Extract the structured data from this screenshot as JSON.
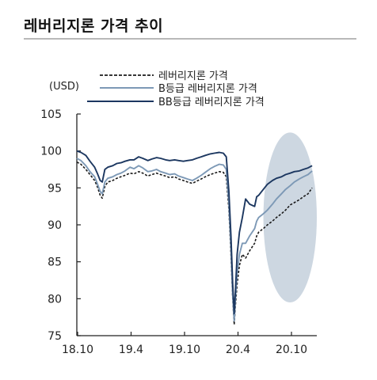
{
  "page": {
    "title": "레버리지론 가격 추이"
  },
  "chart_data": {
    "type": "line",
    "ylabel": "(USD)",
    "ylim": [
      75,
      105
    ],
    "yticks": [
      75,
      80,
      85,
      90,
      95,
      100,
      105
    ],
    "xlim": [
      "2018-10-01",
      "2020-12-31"
    ],
    "xtick_labels": [
      "18.10",
      "19.4",
      "19.10",
      "20.4",
      "20.10"
    ],
    "legend_position": "top",
    "highlight": {
      "shape": "ellipse",
      "x": [
        "2020-07-01",
        "2020-12-31"
      ],
      "y": [
        79.5,
        102.5
      ],
      "color": "#cdd7e1"
    },
    "series": [
      {
        "name": "레버리지론 가격",
        "style": "dashed",
        "color": "#1a1a1a",
        "x": [
          "2018-10-01",
          "2018-10-15",
          "2018-11-01",
          "2018-11-15",
          "2018-12-01",
          "2018-12-10",
          "2018-12-20",
          "2018-12-27",
          "2019-01-05",
          "2019-01-15",
          "2019-02-01",
          "2019-02-15",
          "2019-03-01",
          "2019-03-15",
          "2019-04-01",
          "2019-04-15",
          "2019-05-01",
          "2019-05-15",
          "2019-06-01",
          "2019-06-15",
          "2019-07-01",
          "2019-07-15",
          "2019-08-01",
          "2019-08-15",
          "2019-09-01",
          "2019-09-15",
          "2019-10-01",
          "2019-10-15",
          "2019-11-01",
          "2019-11-15",
          "2019-12-01",
          "2019-12-15",
          "2020-01-01",
          "2020-01-15",
          "2020-02-01",
          "2020-02-15",
          "2020-02-25",
          "2020-03-05",
          "2020-03-12",
          "2020-03-18",
          "2020-03-23",
          "2020-03-27",
          "2020-04-02",
          "2020-04-10",
          "2020-04-20",
          "2020-05-01",
          "2020-05-15",
          "2020-06-01",
          "2020-06-08",
          "2020-06-15",
          "2020-07-01",
          "2020-07-15",
          "2020-08-01",
          "2020-08-15",
          "2020-09-01",
          "2020-09-15",
          "2020-10-01",
          "2020-10-15",
          "2020-11-01",
          "2020-11-15",
          "2020-12-01",
          "2020-12-15"
        ],
        "y": [
          98.5,
          98.2,
          97.5,
          96.8,
          96.0,
          95.2,
          94.0,
          93.6,
          95.2,
          95.8,
          96.0,
          96.3,
          96.5,
          96.7,
          97.0,
          96.9,
          97.2,
          97.0,
          96.6,
          96.8,
          97.0,
          96.8,
          96.6,
          96.4,
          96.5,
          96.2,
          96.0,
          95.8,
          95.6,
          95.9,
          96.2,
          96.5,
          96.8,
          97.0,
          97.2,
          97.1,
          96.5,
          92.0,
          86.0,
          80.0,
          76.5,
          79.0,
          82.0,
          84.5,
          86.0,
          85.5,
          86.5,
          87.5,
          88.5,
          89.0,
          89.5,
          90.0,
          90.5,
          91.0,
          91.5,
          92.0,
          92.7,
          93.0,
          93.4,
          93.8,
          94.2,
          95.0
        ]
      },
      {
        "name": "B등급 레버리지론 가격",
        "style": "solid",
        "color": "#7d99b6",
        "x": [
          "2018-10-01",
          "2018-10-15",
          "2018-11-01",
          "2018-11-15",
          "2018-12-01",
          "2018-12-10",
          "2018-12-20",
          "2018-12-27",
          "2019-01-05",
          "2019-01-15",
          "2019-02-01",
          "2019-02-15",
          "2019-03-01",
          "2019-03-15",
          "2019-04-01",
          "2019-04-15",
          "2019-05-01",
          "2019-05-15",
          "2019-06-01",
          "2019-06-15",
          "2019-07-01",
          "2019-07-15",
          "2019-08-01",
          "2019-08-15",
          "2019-09-01",
          "2019-09-15",
          "2019-10-01",
          "2019-10-15",
          "2019-11-01",
          "2019-11-15",
          "2019-12-01",
          "2019-12-15",
          "2020-01-01",
          "2020-01-15",
          "2020-02-01",
          "2020-02-15",
          "2020-02-25",
          "2020-03-05",
          "2020-03-12",
          "2020-03-18",
          "2020-03-23",
          "2020-03-27",
          "2020-04-02",
          "2020-04-10",
          "2020-04-20",
          "2020-05-01",
          "2020-05-15",
          "2020-06-01",
          "2020-06-08",
          "2020-06-15",
          "2020-07-01",
          "2020-07-15",
          "2020-08-01",
          "2020-08-15",
          "2020-09-01",
          "2020-09-15",
          "2020-10-01",
          "2020-10-15",
          "2020-11-01",
          "2020-11-15",
          "2020-12-01",
          "2020-12-15"
        ],
        "y": [
          99.0,
          98.7,
          98.0,
          97.2,
          96.5,
          95.6,
          94.5,
          94.2,
          95.8,
          96.3,
          96.5,
          96.8,
          97.0,
          97.3,
          97.8,
          97.6,
          98.0,
          97.7,
          97.2,
          97.3,
          97.5,
          97.2,
          97.0,
          96.8,
          96.9,
          96.6,
          96.4,
          96.2,
          96.0,
          96.3,
          96.7,
          97.1,
          97.6,
          97.9,
          98.2,
          98.1,
          97.5,
          93.0,
          87.0,
          80.5,
          77.0,
          80.0,
          83.5,
          86.0,
          87.5,
          87.5,
          88.5,
          89.5,
          90.5,
          91.0,
          91.5,
          92.0,
          92.8,
          93.5,
          94.2,
          94.8,
          95.3,
          95.8,
          96.2,
          96.5,
          96.8,
          97.3
        ]
      },
      {
        "name": "BB등급 레버리지론 가격",
        "style": "solid",
        "color": "#1c3760",
        "x": [
          "2018-10-01",
          "2018-10-15",
          "2018-11-01",
          "2018-11-15",
          "2018-12-01",
          "2018-12-10",
          "2018-12-20",
          "2018-12-27",
          "2019-01-05",
          "2019-01-15",
          "2019-02-01",
          "2019-02-15",
          "2019-03-01",
          "2019-03-15",
          "2019-04-01",
          "2019-04-15",
          "2019-05-01",
          "2019-05-15",
          "2019-06-01",
          "2019-06-15",
          "2019-07-01",
          "2019-07-15",
          "2019-08-01",
          "2019-08-15",
          "2019-09-01",
          "2019-09-15",
          "2019-10-01",
          "2019-10-15",
          "2019-11-01",
          "2019-11-15",
          "2019-12-01",
          "2019-12-15",
          "2020-01-01",
          "2020-01-15",
          "2020-02-01",
          "2020-02-15",
          "2020-02-25",
          "2020-03-05",
          "2020-03-12",
          "2020-03-18",
          "2020-03-23",
          "2020-03-27",
          "2020-04-02",
          "2020-04-10",
          "2020-04-20",
          "2020-05-01",
          "2020-05-15",
          "2020-06-01",
          "2020-06-08",
          "2020-06-15",
          "2020-07-01",
          "2020-07-15",
          "2020-08-01",
          "2020-08-15",
          "2020-09-01",
          "2020-09-15",
          "2020-10-01",
          "2020-10-15",
          "2020-11-01",
          "2020-11-15",
          "2020-12-01",
          "2020-12-15"
        ],
        "y": [
          100.0,
          99.8,
          99.4,
          98.6,
          97.8,
          97.0,
          96.0,
          95.8,
          97.5,
          97.8,
          98.0,
          98.3,
          98.4,
          98.6,
          98.8,
          98.8,
          99.2,
          99.0,
          98.7,
          98.9,
          99.1,
          99.0,
          98.8,
          98.7,
          98.8,
          98.7,
          98.6,
          98.7,
          98.8,
          99.0,
          99.2,
          99.4,
          99.6,
          99.7,
          99.8,
          99.7,
          99.2,
          94.5,
          88.5,
          82.0,
          78.0,
          81.0,
          86.0,
          89.0,
          91.0,
          93.5,
          92.8,
          92.5,
          93.8,
          94.0,
          94.8,
          95.5,
          96.0,
          96.3,
          96.5,
          96.8,
          97.0,
          97.2,
          97.3,
          97.5,
          97.7,
          98.0
        ]
      }
    ]
  }
}
